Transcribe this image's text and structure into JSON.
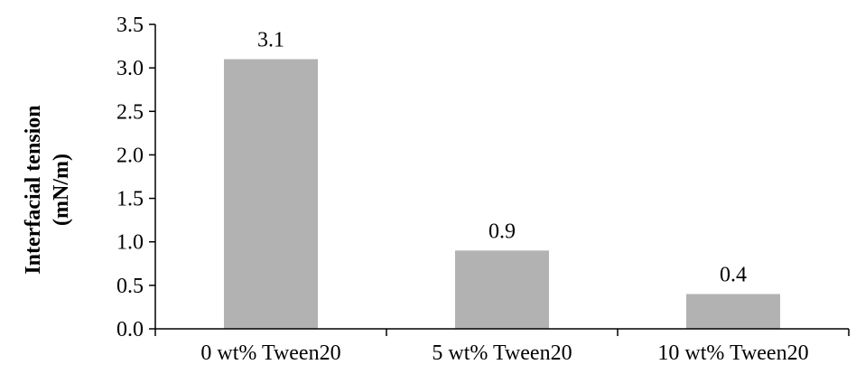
{
  "chart_data": {
    "type": "bar",
    "categories": [
      "0 wt% Tween20",
      "5 wt% Tween20",
      "10 wt% Tween20"
    ],
    "values": [
      3.1,
      0.9,
      0.4
    ],
    "data_labels": [
      "3.1",
      "0.9",
      "0.4"
    ],
    "ylabel_lines": [
      "Interfacial tension",
      "(mN/m)"
    ],
    "xlabel": "",
    "title": "",
    "ylim": [
      0,
      3.5
    ],
    "ytick_values": [
      0,
      0.5,
      1.0,
      1.5,
      2.0,
      2.5,
      3.0,
      3.5
    ],
    "ytick_labels": [
      "0.0",
      "0.5",
      "1.0",
      "1.5",
      "2.0",
      "2.5",
      "3.0",
      "3.5"
    ],
    "grid": false,
    "legend": "none",
    "bar_color": "#b2b2b2",
    "axis_color": "#000000"
  }
}
